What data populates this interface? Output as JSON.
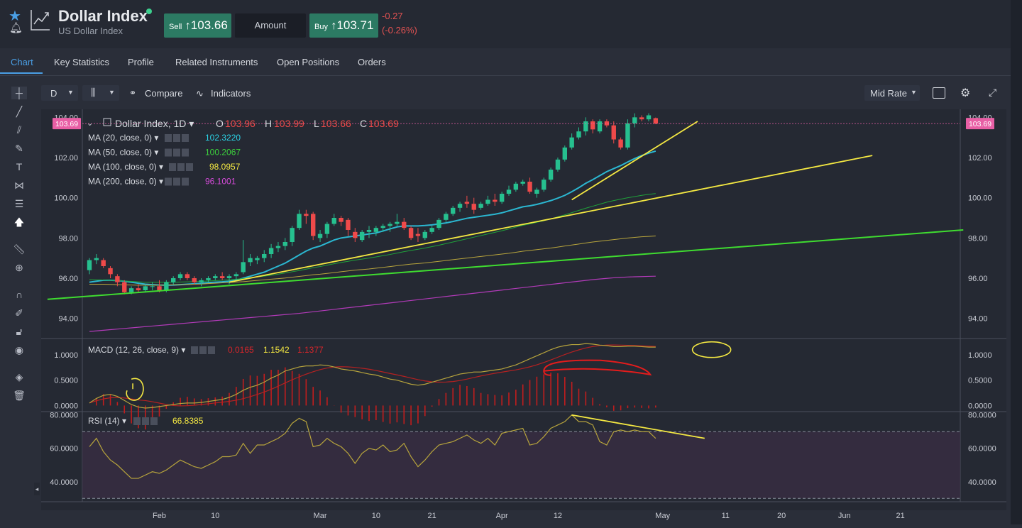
{
  "header": {
    "title": "Dollar Index",
    "subtitle": "US Dollar Index",
    "sell_label": "Sell",
    "sell_price": "103.66",
    "amount_label": "Amount",
    "buy_label": "Buy",
    "buy_price": "103.71",
    "change": "-0.27",
    "change_pct": "(-0.26%)"
  },
  "tabs": [
    "Chart",
    "Key Statistics",
    "Profile",
    "Related Instruments",
    "Open Positions",
    "Orders"
  ],
  "toolbar": {
    "interval": "D",
    "compare": "Compare",
    "indicators": "Indicators",
    "mid_rate": "Mid Rate"
  },
  "colors": {
    "up": "#26c08f",
    "down": "#ef4a4a",
    "ma20": "#2bb7d1",
    "ma50": "#1fa23a",
    "ma100": "#b7a43c",
    "ma200": "#b13ab8",
    "trend_yellow": "#f4e842",
    "trend_green": "#3fdc30",
    "annotation_red": "#e51c1c"
  },
  "chart_data": {
    "type": "candlestick",
    "title": "Dollar Index, 1D",
    "ohlc_label": {
      "o": "103.96",
      "h": "103.99",
      "l": "103.66",
      "c": "103.69"
    },
    "last_price": "103.69",
    "price_axis": {
      "ticks": [
        "104.00",
        "102.00",
        "100.00",
        "98.00",
        "96.00",
        "94.00"
      ],
      "ylim": [
        93.0,
        104.4
      ]
    },
    "x_axis": {
      "ticks": [
        "Feb",
        "10",
        "Mar",
        "10",
        "21",
        "Apr",
        "12",
        "May",
        "11",
        "20",
        "Jun",
        "21"
      ]
    },
    "ma_legends": [
      {
        "label": "MA (20, close, 0)",
        "value": "102.3220"
      },
      {
        "label": "MA (50, close, 0)",
        "value": "100.2067"
      },
      {
        "label": "MA (100, close, 0)",
        "value": "98.0957"
      },
      {
        "label": "MA (200, close, 0)",
        "value": "96.1001"
      }
    ],
    "candles": [
      [
        96.4,
        97.0,
        96.2,
        96.9
      ],
      [
        96.9,
        97.2,
        96.7,
        97.0
      ],
      [
        96.9,
        97.0,
        96.5,
        96.6
      ],
      [
        96.5,
        96.6,
        96.0,
        96.2
      ],
      [
        96.1,
        96.2,
        95.6,
        95.8
      ],
      [
        95.8,
        95.9,
        95.2,
        95.3
      ],
      [
        95.3,
        95.6,
        95.2,
        95.5
      ],
      [
        95.5,
        95.7,
        95.3,
        95.4
      ],
      [
        95.4,
        95.7,
        95.3,
        95.6
      ],
      [
        95.6,
        95.8,
        95.4,
        95.6
      ],
      [
        95.6,
        95.9,
        95.3,
        95.4
      ],
      [
        95.4,
        95.9,
        95.3,
        95.8
      ],
      [
        95.8,
        96.1,
        95.7,
        96.0
      ],
      [
        96.0,
        96.3,
        95.9,
        96.2
      ],
      [
        96.2,
        96.3,
        95.9,
        96.0
      ],
      [
        96.0,
        96.1,
        95.7,
        95.8
      ],
      [
        95.8,
        96.0,
        95.6,
        95.9
      ],
      [
        95.9,
        96.1,
        95.8,
        96.0
      ],
      [
        96.0,
        96.2,
        95.9,
        96.1
      ],
      [
        96.1,
        96.3,
        95.9,
        96.0
      ],
      [
        96.0,
        96.2,
        95.7,
        96.1
      ],
      [
        96.1,
        96.3,
        95.9,
        96.2
      ],
      [
        96.3,
        97.9,
        96.2,
        96.8
      ],
      [
        96.8,
        97.2,
        96.6,
        97.0
      ],
      [
        96.9,
        97.1,
        96.7,
        97.0
      ],
      [
        97.0,
        97.4,
        96.8,
        97.2
      ],
      [
        97.2,
        97.7,
        97.0,
        97.5
      ],
      [
        97.5,
        97.8,
        97.3,
        97.6
      ],
      [
        97.6,
        98.0,
        97.4,
        97.8
      ],
      [
        97.8,
        98.6,
        97.6,
        98.5
      ],
      [
        98.5,
        99.4,
        98.4,
        99.2
      ],
      [
        99.2,
        99.4,
        98.7,
        99.1
      ],
      [
        99.2,
        99.3,
        97.9,
        98.1
      ],
      [
        98.0,
        98.4,
        97.8,
        98.2
      ],
      [
        98.2,
        98.8,
        98.0,
        98.7
      ],
      [
        98.7,
        99.2,
        98.6,
        99.0
      ],
      [
        99.0,
        99.1,
        98.6,
        98.8
      ],
      [
        98.9,
        99.0,
        98.1,
        98.4
      ],
      [
        98.3,
        98.5,
        97.8,
        98.0
      ],
      [
        97.9,
        98.4,
        97.8,
        98.3
      ],
      [
        98.3,
        98.6,
        98.0,
        98.4
      ],
      [
        98.3,
        98.6,
        98.1,
        98.5
      ],
      [
        98.5,
        98.7,
        98.3,
        98.6
      ],
      [
        98.6,
        98.8,
        98.3,
        98.7
      ],
      [
        98.7,
        99.2,
        98.6,
        98.8
      ],
      [
        98.8,
        99.0,
        98.4,
        98.5
      ],
      [
        98.5,
        98.6,
        97.9,
        98.0
      ],
      [
        98.2,
        98.5,
        97.8,
        98.1
      ],
      [
        98.0,
        98.4,
        97.9,
        98.3
      ],
      [
        98.3,
        98.6,
        98.2,
        98.5
      ],
      [
        98.5,
        99.0,
        98.4,
        98.9
      ],
      [
        98.9,
        99.3,
        98.8,
        99.2
      ],
      [
        99.2,
        99.6,
        99.1,
        99.5
      ],
      [
        99.5,
        99.8,
        99.3,
        99.7
      ],
      [
        99.8,
        100.1,
        99.5,
        99.7
      ],
      [
        99.7,
        100.0,
        99.2,
        99.4
      ],
      [
        99.5,
        99.8,
        99.4,
        99.7
      ],
      [
        99.7,
        100.1,
        99.6,
        99.9
      ],
      [
        99.9,
        100.2,
        99.6,
        99.8
      ],
      [
        99.8,
        100.3,
        99.7,
        100.2
      ],
      [
        100.2,
        100.6,
        100.1,
        100.4
      ],
      [
        100.4,
        100.8,
        100.3,
        100.7
      ],
      [
        100.7,
        100.9,
        100.6,
        100.8
      ],
      [
        100.8,
        101.0,
        100.2,
        100.3
      ],
      [
        100.2,
        100.5,
        100.0,
        100.4
      ],
      [
        100.4,
        101.0,
        100.3,
        100.9
      ],
      [
        100.9,
        101.5,
        100.8,
        101.4
      ],
      [
        101.4,
        102.0,
        101.3,
        101.9
      ],
      [
        101.9,
        102.6,
        101.8,
        102.5
      ],
      [
        102.5,
        103.2,
        102.4,
        103.0
      ],
      [
        103.0,
        103.5,
        102.9,
        103.3
      ],
      [
        103.3,
        104.0,
        103.1,
        103.8
      ],
      [
        103.8,
        103.9,
        103.2,
        103.4
      ],
      [
        103.3,
        103.9,
        103.2,
        103.8
      ],
      [
        103.8,
        103.9,
        103.5,
        103.6
      ],
      [
        103.6,
        103.8,
        102.7,
        102.9
      ],
      [
        102.9,
        103.0,
        102.4,
        102.5
      ],
      [
        102.5,
        103.9,
        102.4,
        103.7
      ],
      [
        103.7,
        104.2,
        103.5,
        104.0
      ],
      [
        104.0,
        104.1,
        103.8,
        103.9
      ],
      [
        103.9,
        104.2,
        103.8,
        104.1
      ],
      [
        103.96,
        103.99,
        103.66,
        103.69
      ]
    ],
    "ma_series": {
      "ma20": [
        95.8,
        95.85,
        95.9,
        95.9,
        95.88,
        95.85,
        95.8,
        95.75,
        95.7,
        95.68,
        95.66,
        95.65,
        95.66,
        95.68,
        95.7,
        95.72,
        95.75,
        95.78,
        95.8,
        95.82,
        95.85,
        95.9,
        96.0,
        96.1,
        96.2,
        96.3,
        96.45,
        96.6,
        96.75,
        96.95,
        97.15,
        97.35,
        97.5,
        97.6,
        97.75,
        97.9,
        98.0,
        98.05,
        98.1,
        98.15,
        98.2,
        98.25,
        98.35,
        98.45,
        98.55,
        98.6,
        98.6,
        98.6,
        98.62,
        98.65,
        98.7,
        98.75,
        98.82,
        98.9,
        98.98,
        99.03,
        99.08,
        99.13,
        99.18,
        99.25,
        99.35,
        99.45,
        99.55,
        99.6,
        99.67,
        99.76,
        99.86,
        99.98,
        100.12,
        100.3,
        100.5,
        100.72,
        100.9,
        101.1,
        101.3,
        101.45,
        101.6,
        101.78,
        101.95,
        102.1,
        102.22,
        102.32
      ],
      "ma50": [
        95.93,
        95.92,
        95.91,
        95.9,
        95.88,
        95.86,
        95.84,
        95.82,
        95.8,
        95.8,
        95.8,
        95.8,
        95.8,
        95.81,
        95.82,
        95.83,
        95.84,
        95.86,
        95.88,
        95.9,
        95.92,
        95.95,
        95.98,
        96.02,
        96.06,
        96.1,
        96.15,
        96.2,
        96.26,
        96.32,
        96.38,
        96.45,
        96.52,
        96.58,
        96.65,
        96.72,
        96.78,
        96.84,
        96.9,
        96.95,
        97.0,
        97.06,
        97.12,
        97.18,
        97.25,
        97.32,
        97.38,
        97.44,
        97.5,
        97.57,
        97.64,
        97.72,
        97.8,
        97.88,
        97.96,
        98.04,
        98.12,
        98.2,
        98.28,
        98.36,
        98.45,
        98.54,
        98.63,
        98.7,
        98.78,
        98.86,
        98.95,
        99.05,
        99.15,
        99.26,
        99.37,
        99.48,
        99.58,
        99.68,
        99.78,
        99.86,
        99.93,
        100.0,
        100.06,
        100.12,
        100.17,
        100.21
      ],
      "ma100": [
        95.7,
        95.7,
        95.7,
        95.69,
        95.68,
        95.67,
        95.66,
        95.65,
        95.65,
        95.65,
        95.65,
        95.66,
        95.67,
        95.68,
        95.69,
        95.7,
        95.71,
        95.73,
        95.75,
        95.77,
        95.79,
        95.81,
        95.83,
        95.86,
        95.89,
        95.92,
        95.95,
        95.98,
        96.01,
        96.05,
        96.09,
        96.13,
        96.17,
        96.2,
        96.24,
        96.28,
        96.32,
        96.36,
        96.4,
        96.43,
        96.46,
        96.5,
        96.54,
        96.58,
        96.62,
        96.66,
        96.7,
        96.73,
        96.76,
        96.8,
        96.84,
        96.88,
        96.92,
        96.96,
        97.0,
        97.04,
        97.08,
        97.12,
        97.16,
        97.2,
        97.24,
        97.29,
        97.34,
        97.38,
        97.42,
        97.46,
        97.5,
        97.55,
        97.6,
        97.65,
        97.7,
        97.75,
        97.8,
        97.84,
        97.88,
        97.92,
        97.96,
        98.0,
        98.03,
        98.06,
        98.08,
        98.1
      ],
      "ma200": [
        93.35,
        93.38,
        93.41,
        93.44,
        93.47,
        93.5,
        93.53,
        93.56,
        93.59,
        93.62,
        93.65,
        93.68,
        93.71,
        93.74,
        93.77,
        93.8,
        93.83,
        93.86,
        93.89,
        93.92,
        93.95,
        93.98,
        94.01,
        94.04,
        94.07,
        94.1,
        94.13,
        94.16,
        94.19,
        94.22,
        94.25,
        94.29,
        94.33,
        94.37,
        94.41,
        94.45,
        94.49,
        94.53,
        94.57,
        94.61,
        94.65,
        94.69,
        94.73,
        94.77,
        94.81,
        94.85,
        94.89,
        94.93,
        94.97,
        95.01,
        95.05,
        95.09,
        95.13,
        95.17,
        95.21,
        95.25,
        95.29,
        95.33,
        95.37,
        95.41,
        95.45,
        95.49,
        95.53,
        95.57,
        95.61,
        95.65,
        95.69,
        95.73,
        95.77,
        95.81,
        95.85,
        95.89,
        95.93,
        95.96,
        95.99,
        96.02,
        96.04,
        96.06,
        96.07,
        96.08,
        96.09,
        96.1
      ]
    },
    "macd": {
      "label": "MACD (12, 26, close, 9)",
      "hist_value": "0.0165",
      "macd_value": "1.1542",
      "signal_value": "1.1377",
      "ticks": [
        "1.0000",
        "0.5000",
        "0.0000"
      ],
      "ylim": [
        -0.12,
        1.32
      ]
    },
    "rsi": {
      "label": "RSI (14)",
      "value": "66.8385",
      "ticks": [
        "80.0000",
        "60.0000",
        "40.0000"
      ],
      "ylim": [
        28,
        82
      ]
    }
  }
}
